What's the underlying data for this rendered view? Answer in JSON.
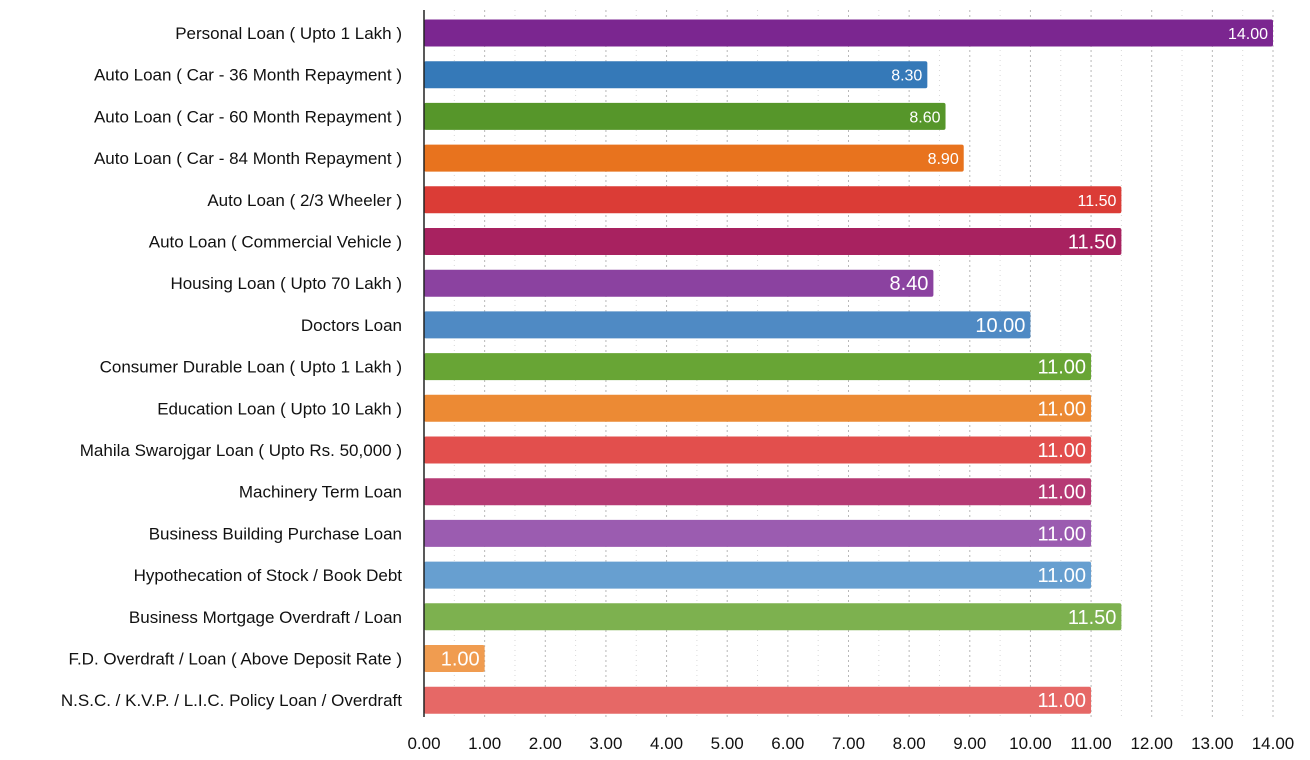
{
  "chart_data": {
    "type": "bar",
    "orientation": "horizontal",
    "categories": [
      "Personal Loan ( Upto 1 Lakh )",
      "Auto Loan ( Car - 36 Month Repayment )",
      "Auto Loan ( Car - 60 Month Repayment )",
      "Auto Loan ( Car - 84 Month Repayment )",
      "Auto Loan ( 2/3 Wheeler )",
      "Auto Loan ( Commercial Vehicle )",
      "Housing Loan ( Upto 70 Lakh )",
      "Doctors Loan",
      "Consumer Durable Loan ( Upto 1 Lakh )",
      "Education Loan ( Upto 10 Lakh )",
      "Mahila Swarojgar Loan ( Upto Rs. 50,000 )",
      "Machinery  Term Loan",
      "Business Building Purchase Loan",
      "Hypothecation of Stock / Book Debt",
      "Business Mortgage Overdraft / Loan",
      "F.D. Overdraft / Loan ( Above Deposit Rate )",
      "N.S.C. / K.V.P. / L.I.C. Policy Loan / Overdraft"
    ],
    "values": [
      14.0,
      8.3,
      8.6,
      8.9,
      11.5,
      11.5,
      8.4,
      10.0,
      11.0,
      11.0,
      11.0,
      11.0,
      11.0,
      11.0,
      11.5,
      1.0,
      11.0
    ],
    "value_labels": [
      "14.00",
      "8.30",
      "8.60",
      "8.90",
      "11.50",
      "11.50",
      "8.40",
      "10.00",
      "11.00",
      "11.00",
      "11.00",
      "11.00",
      "11.00",
      "11.00",
      "11.50",
      "1.00",
      "11.00"
    ],
    "colors": [
      "#7B2690",
      "#3579B8",
      "#56962A",
      "#E8731E",
      "#DB3C36",
      "#A82260",
      "#8B42A0",
      "#4F8AC4",
      "#68A535",
      "#EC8A34",
      "#E24F4D",
      "#B63A74",
      "#9B5CB0",
      "#679FD0",
      "#7DB14F",
      "#F09C50",
      "#E66866"
    ],
    "xlim": [
      0,
      14
    ],
    "xticks": [
      "0.00",
      "1.00",
      "2.00",
      "3.00",
      "4.00",
      "5.00",
      "6.00",
      "7.00",
      "8.00",
      "9.00",
      "10.00",
      "11.00",
      "12.00",
      "13.00",
      "14.00"
    ],
    "grid": "vertical dotted",
    "title": "",
    "xlabel": "",
    "ylabel": ""
  }
}
